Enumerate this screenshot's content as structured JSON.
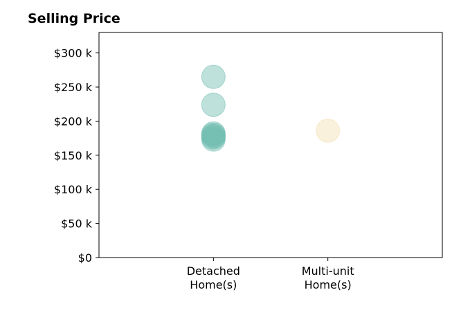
{
  "chart_data": {
    "type": "scatter",
    "title": "Selling Price",
    "xlabel": "",
    "ylabel": "",
    "categories": [
      [
        "Detached",
        "Home(s)"
      ],
      [
        "Multi-unit",
        "Home(s)"
      ]
    ],
    "ylim": [
      0,
      330000
    ],
    "yticks": [
      {
        "value": 0,
        "label": "$0"
      },
      {
        "value": 50000,
        "label": "$50 k"
      },
      {
        "value": 100000,
        "label": "$100 k"
      },
      {
        "value": 150000,
        "label": "$150 k"
      },
      {
        "value": 200000,
        "label": "$200 k"
      },
      {
        "value": 250000,
        "label": "$250 k"
      },
      {
        "value": 300000,
        "label": "$300 k"
      }
    ],
    "grid": false,
    "series": [
      {
        "category": "Detached Home(s)",
        "color": "#6fbcb0",
        "values": [
          265000,
          224000,
          182000,
          180000,
          178000,
          176000,
          173000
        ]
      },
      {
        "category": "Multi-unit Home(s)",
        "color": "#f2dfb0",
        "values": [
          186000
        ]
      }
    ]
  }
}
